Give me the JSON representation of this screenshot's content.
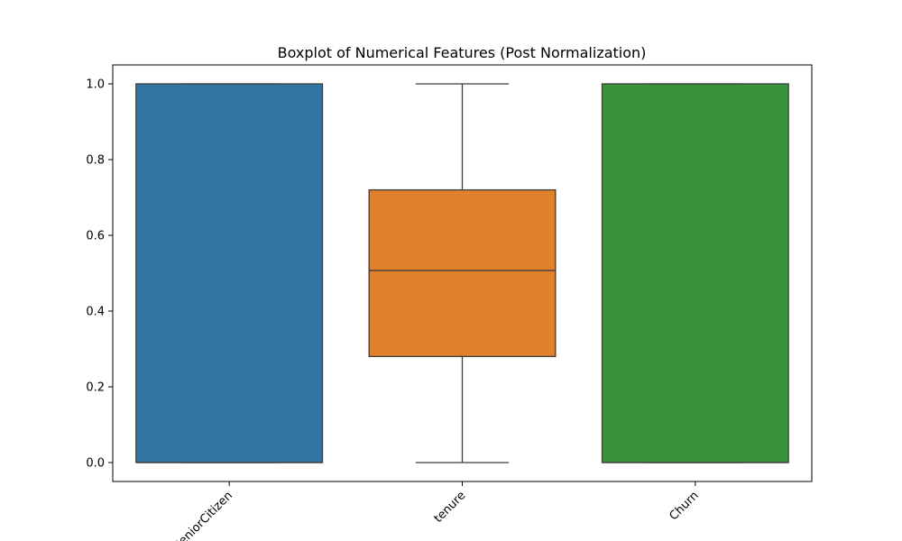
{
  "chart_data": {
    "type": "boxplot",
    "title": "Boxplot of Numerical Features (Post Normalization)",
    "xlabel": "",
    "ylabel": "",
    "ylim": [
      -0.05,
      1.05
    ],
    "yticks": [
      "0.0",
      "0.2",
      "0.4",
      "0.6",
      "0.8",
      "1.0"
    ],
    "ytick_values": [
      0.0,
      0.2,
      0.4,
      0.6,
      0.8,
      1.0
    ],
    "grid": false,
    "categories": [
      "SeniorCitizen",
      "tenure",
      "Churn"
    ],
    "boxes": [
      {
        "category": "SeniorCitizen",
        "whisker_low": 0.0,
        "q1": 0.0,
        "median": 0.0,
        "q3": 1.0,
        "whisker_high": 1.0,
        "color": "#3274a1"
      },
      {
        "category": "tenure",
        "whisker_low": 0.0,
        "q1": 0.28,
        "median": 0.507,
        "q3": 0.72,
        "whisker_high": 1.0,
        "color": "#e1812c"
      },
      {
        "category": "Churn",
        "whisker_low": 0.0,
        "q1": 0.0,
        "median": 0.0,
        "q3": 1.0,
        "whisker_high": 1.0,
        "color": "#3a923a"
      }
    ]
  }
}
